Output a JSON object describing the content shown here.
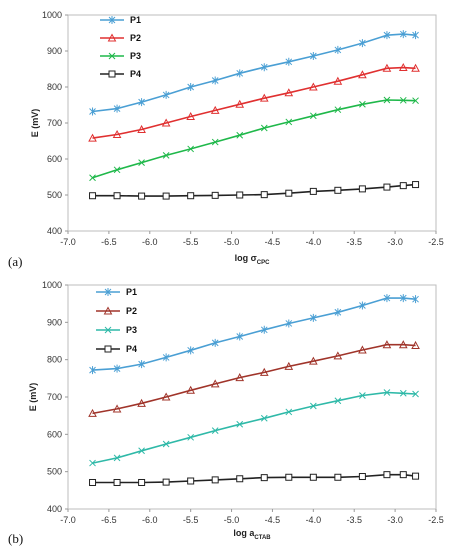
{
  "chart_data": [
    {
      "type": "line",
      "panel_label": "(a)",
      "xlabel": "log σ",
      "xlabel_sub": "CPC",
      "ylabel": "E (mV)",
      "xlim": [
        -7.0,
        -2.5
      ],
      "ylim": [
        400,
        1000
      ],
      "x_ticks": [
        "-7.0",
        "-6.5",
        "-6.0",
        "-5.5",
        "-5.0",
        "-4.5",
        "-4.0",
        "-3.5",
        "-3.0",
        "-2.5"
      ],
      "y_ticks": [
        "400",
        "500",
        "600",
        "700",
        "800",
        "900",
        "1000"
      ],
      "grid": false,
      "legend": "top-left",
      "x": [
        -6.7,
        -6.4,
        -6.1,
        -5.8,
        -5.5,
        -5.2,
        -4.9,
        -4.6,
        -4.3,
        -4.0,
        -3.7,
        -3.4,
        -3.1,
        -2.9,
        -2.75
      ],
      "series": [
        {
          "name": "P1",
          "color": "#4a9fd4",
          "marker": "cross",
          "values": [
            732,
            740,
            758,
            778,
            800,
            818,
            838,
            855,
            870,
            886,
            903,
            922,
            944,
            947,
            944
          ]
        },
        {
          "name": "P2",
          "color": "#e03030",
          "marker": "triangle",
          "values": [
            658,
            668,
            682,
            700,
            718,
            735,
            752,
            769,
            784,
            800,
            816,
            834,
            852,
            854,
            852
          ]
        },
        {
          "name": "P3",
          "color": "#1fb84a",
          "marker": "x",
          "values": [
            548,
            570,
            590,
            610,
            628,
            647,
            666,
            686,
            703,
            720,
            737,
            752,
            764,
            763,
            762
          ]
        },
        {
          "name": "P4",
          "color": "#222222",
          "marker": "square",
          "values": [
            498,
            498,
            497,
            497,
            498,
            499,
            500,
            501,
            505,
            510,
            513,
            517,
            522,
            526,
            529
          ]
        }
      ]
    },
    {
      "type": "line",
      "panel_label": "(b)",
      "xlabel": "log a",
      "xlabel_sub": "CTAB",
      "ylabel": "E (mV)",
      "xlim": [
        -7.0,
        -2.5
      ],
      "ylim": [
        400,
        1000
      ],
      "x_ticks": [
        "-7.0",
        "-6.5",
        "-6.0",
        "-5.5",
        "-5.0",
        "-4.5",
        "-4.0",
        "-3.5",
        "-3.0",
        "-2.5"
      ],
      "y_ticks": [
        "400",
        "500",
        "600",
        "700",
        "800",
        "900",
        "1000"
      ],
      "grid": false,
      "legend": "top-left",
      "x": [
        -6.7,
        -6.4,
        -6.1,
        -5.8,
        -5.5,
        -5.2,
        -4.9,
        -4.6,
        -4.3,
        -4.0,
        -3.7,
        -3.4,
        -3.1,
        -2.9,
        -2.75
      ],
      "series": [
        {
          "name": "P1",
          "color": "#4a9fd4",
          "marker": "cross",
          "values": [
            772,
            776,
            788,
            806,
            825,
            845,
            862,
            880,
            897,
            912,
            927,
            945,
            965,
            965,
            962
          ]
        },
        {
          "name": "P2",
          "color": "#a0342a",
          "marker": "triangle",
          "values": [
            656,
            668,
            683,
            700,
            718,
            735,
            752,
            766,
            782,
            796,
            810,
            826,
            840,
            840,
            838
          ]
        },
        {
          "name": "P3",
          "color": "#2fb9a8",
          "marker": "x",
          "values": [
            523,
            537,
            556,
            574,
            592,
            610,
            627,
            643,
            660,
            676,
            690,
            704,
            712,
            710,
            708
          ]
        },
        {
          "name": "P4",
          "color": "#222222",
          "marker": "square",
          "values": [
            471,
            471,
            471,
            472,
            475,
            478,
            481,
            484,
            485,
            485,
            485,
            487,
            492,
            492,
            488
          ]
        }
      ]
    }
  ]
}
